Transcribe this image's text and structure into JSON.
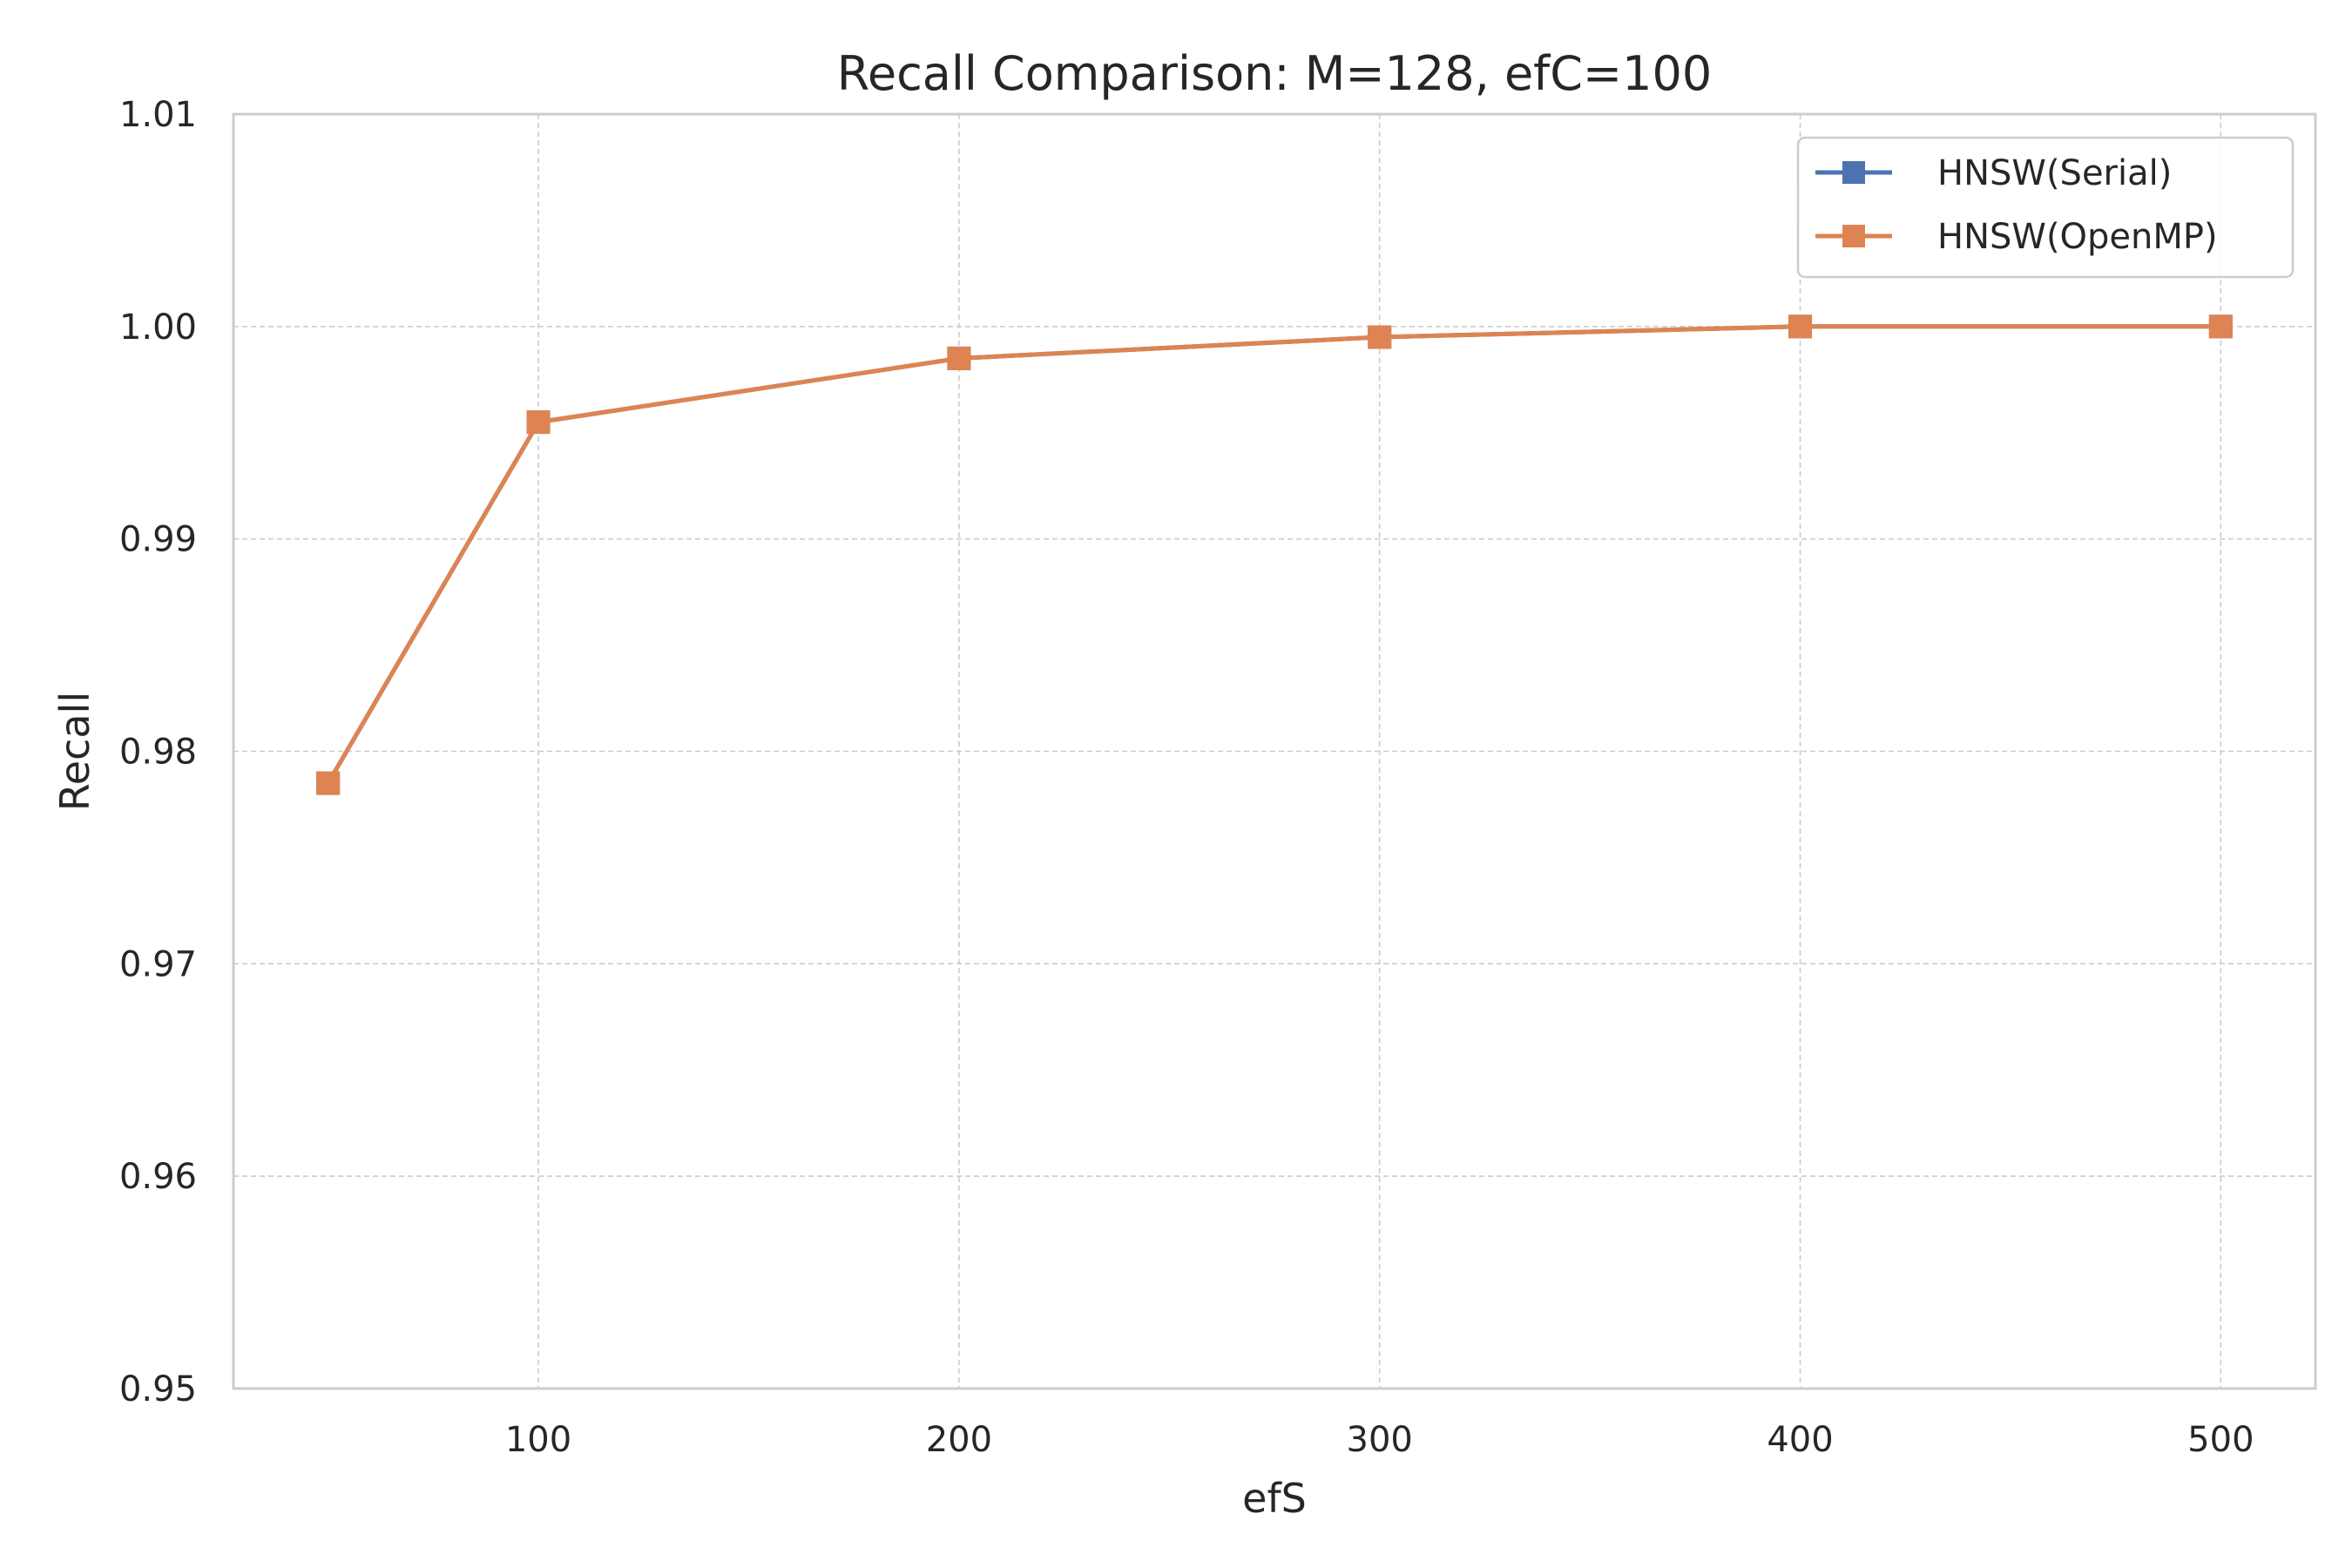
{
  "chart_data": {
    "type": "line",
    "title": "Recall Comparison: M=128, efC=100",
    "xlabel": "efS",
    "ylabel": "Recall",
    "x": [
      50,
      100,
      200,
      300,
      400,
      500
    ],
    "xlim": [
      27.5,
      522.5
    ],
    "ylim": [
      0.95,
      1.01
    ],
    "xticks": [
      100,
      200,
      300,
      400,
      500
    ],
    "xtick_labels": [
      "100",
      "200",
      "300",
      "400",
      "500"
    ],
    "yticks": [
      0.95,
      0.96,
      0.97,
      0.98,
      0.99,
      1.0,
      1.01
    ],
    "ytick_labels": [
      "0.95",
      "0.96",
      "0.97",
      "0.98",
      "0.99",
      "1.00",
      "1.01"
    ],
    "grid": true,
    "legend_position": "top-right",
    "series": [
      {
        "name": "HNSW(Serial)",
        "color": "#4c72b0",
        "marker": "square",
        "values": [
          0.9785,
          0.9955,
          0.9985,
          0.9995,
          1.0,
          1.0
        ]
      },
      {
        "name": "HNSW(OpenMP)",
        "color": "#dd8452",
        "marker": "square",
        "values": [
          0.9785,
          0.9955,
          0.9985,
          0.9995,
          1.0,
          1.0
        ]
      }
    ]
  }
}
